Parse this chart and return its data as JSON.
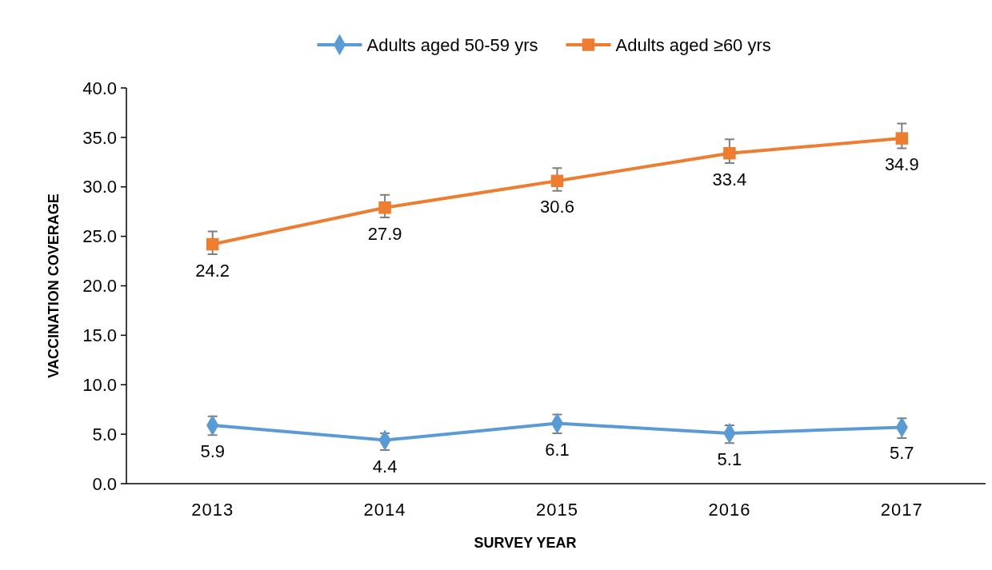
{
  "chart_data": {
    "type": "line",
    "xlabel": "SURVEY YEAR",
    "ylabel": "VACCINATION COVERAGE",
    "categories": [
      "2013",
      "2014",
      "2015",
      "2016",
      "2017"
    ],
    "series": [
      {
        "name": "Adults aged 50-59 yrs",
        "color": "#5b9bd5",
        "marker": "diamond",
        "values": [
          5.9,
          4.4,
          6.1,
          5.1,
          5.7
        ],
        "errors": [
          [
            4.9,
            6.8
          ],
          [
            3.4,
            5.1
          ],
          [
            5.1,
            7.0
          ],
          [
            4.1,
            5.9
          ],
          [
            4.6,
            6.6
          ]
        ]
      },
      {
        "name": "Adults aged ≥60 yrs",
        "color": "#ed7d31",
        "marker": "square",
        "values": [
          24.2,
          27.9,
          30.6,
          33.4,
          34.9
        ],
        "errors": [
          [
            23.2,
            25.5
          ],
          [
            26.9,
            29.2
          ],
          [
            29.6,
            31.9
          ],
          [
            32.4,
            34.8
          ],
          [
            33.9,
            36.4
          ]
        ]
      }
    ],
    "ylim": [
      0,
      40
    ],
    "yticks": [
      {
        "value": 0,
        "label": "0.0"
      },
      {
        "value": 5,
        "label": "5.0"
      },
      {
        "value": 10,
        "label": "10.0"
      },
      {
        "value": 15,
        "label": "15.0"
      },
      {
        "value": 20,
        "label": "20.0"
      },
      {
        "value": 25,
        "label": "25.0"
      },
      {
        "value": 30,
        "label": "30.0"
      },
      {
        "value": 35,
        "label": "35.0"
      },
      {
        "value": 40,
        "label": "40.0"
      }
    ],
    "data_labels": true,
    "legend": "top",
    "grid": false
  }
}
